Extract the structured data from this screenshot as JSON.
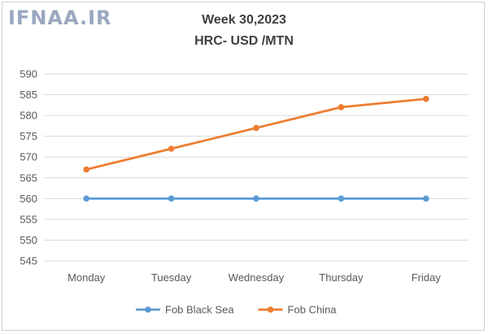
{
  "watermark": "IFNAA.IR",
  "chart_data": {
    "type": "line",
    "title": "Week 30,2023",
    "subtitle": "HRC- USD /MTN",
    "categories": [
      "Monday",
      "Tuesday",
      "Wednesday",
      "Thursday",
      "Friday"
    ],
    "series": [
      {
        "name": "Fob Black Sea",
        "values": [
          560,
          560,
          560,
          560,
          560
        ],
        "color": "#5b9bd5"
      },
      {
        "name": "Fob China",
        "values": [
          567,
          572,
          577,
          582,
          584
        ],
        "color": "#ed7d31"
      }
    ],
    "ylim": [
      545,
      590
    ],
    "yticks": [
      545,
      550,
      555,
      560,
      565,
      570,
      575,
      580,
      585,
      590
    ],
    "grid": true,
    "legend_position": "bottom",
    "gridline_color": "#d9d9d9"
  }
}
